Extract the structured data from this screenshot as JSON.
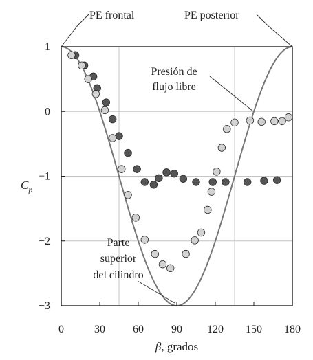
{
  "chart_data": {
    "type": "scatter",
    "xlabel_symbol": "β",
    "xlabel_text": ", grados",
    "ylabel_main": "C",
    "ylabel_sub": "p",
    "xlim": [
      0,
      180
    ],
    "ylim": [
      -3,
      1
    ],
    "x_ticks": [
      0,
      30,
      60,
      90,
      120,
      150,
      180
    ],
    "y_ticks": [
      1,
      0,
      -1,
      -2,
      -3
    ],
    "y_tick_labels": [
      "1",
      "0",
      "−1",
      "−2",
      "−3"
    ],
    "vertical_gridlines": [
      45,
      135
    ],
    "horizontal_gridlines": [
      0,
      -1,
      -2
    ],
    "curve": {
      "name": "Presión de flujo libre",
      "formula": "Cp = 1 - 4 sin^2(beta)",
      "color": "#777777"
    },
    "series": [
      {
        "name": "dark",
        "color": "#555555",
        "points": [
          {
            "x": 11,
            "y": 0.87
          },
          {
            "x": 18,
            "y": 0.71
          },
          {
            "x": 25,
            "y": 0.54
          },
          {
            "x": 28,
            "y": 0.36
          },
          {
            "x": 35,
            "y": 0.14
          },
          {
            "x": 40,
            "y": -0.12
          },
          {
            "x": 45,
            "y": -0.38
          },
          {
            "x": 52,
            "y": -0.64
          },
          {
            "x": 59,
            "y": -0.89
          },
          {
            "x": 65,
            "y": -1.09
          },
          {
            "x": 72,
            "y": -1.13
          },
          {
            "x": 76,
            "y": -1.03
          },
          {
            "x": 82,
            "y": -0.94
          },
          {
            "x": 88,
            "y": -0.96
          },
          {
            "x": 95,
            "y": -1.04
          },
          {
            "x": 105,
            "y": -1.09
          },
          {
            "x": 118,
            "y": -1.09
          },
          {
            "x": 128,
            "y": -1.09
          },
          {
            "x": 145,
            "y": -1.09
          },
          {
            "x": 158,
            "y": -1.07
          },
          {
            "x": 168,
            "y": -1.06
          }
        ]
      },
      {
        "name": "light",
        "color": "#d2d2d2",
        "points": [
          {
            "x": 8,
            "y": 0.87
          },
          {
            "x": 16,
            "y": 0.71
          },
          {
            "x": 21,
            "y": 0.5
          },
          {
            "x": 27,
            "y": 0.27
          },
          {
            "x": 34,
            "y": 0.02
          },
          {
            "x": 40,
            "y": -0.41
          },
          {
            "x": 47,
            "y": -0.89
          },
          {
            "x": 52,
            "y": -1.29
          },
          {
            "x": 58,
            "y": -1.64
          },
          {
            "x": 65,
            "y": -1.98
          },
          {
            "x": 73,
            "y": -2.2
          },
          {
            "x": 79,
            "y": -2.36
          },
          {
            "x": 85,
            "y": -2.42
          },
          {
            "x": 97,
            "y": -2.2
          },
          {
            "x": 104,
            "y": -1.99
          },
          {
            "x": 109,
            "y": -1.87
          },
          {
            "x": 114,
            "y": -1.52
          },
          {
            "x": 117,
            "y": -1.24
          },
          {
            "x": 121,
            "y": -0.93
          },
          {
            "x": 125,
            "y": -0.56
          },
          {
            "x": 129,
            "y": -0.27
          },
          {
            "x": 135,
            "y": -0.17
          },
          {
            "x": 147,
            "y": -0.14
          },
          {
            "x": 156,
            "y": -0.16
          },
          {
            "x": 166,
            "y": -0.15
          },
          {
            "x": 172,
            "y": -0.15
          },
          {
            "x": 177,
            "y": -0.09
          }
        ]
      }
    ],
    "annotations": [
      {
        "lines": [
          "PE frontal"
        ],
        "target": {
          "x": 0,
          "y": 1
        }
      },
      {
        "lines": [
          "PE posterior"
        ],
        "target": {
          "x": 180,
          "y": 1
        }
      },
      {
        "lines": [
          "Presión de",
          "flujo libre"
        ],
        "target": {
          "x": 150,
          "y": 0
        }
      },
      {
        "lines": [
          "Parte",
          "superior",
          "del cilindro"
        ],
        "target": {
          "x": 90,
          "y": -3
        }
      }
    ]
  }
}
